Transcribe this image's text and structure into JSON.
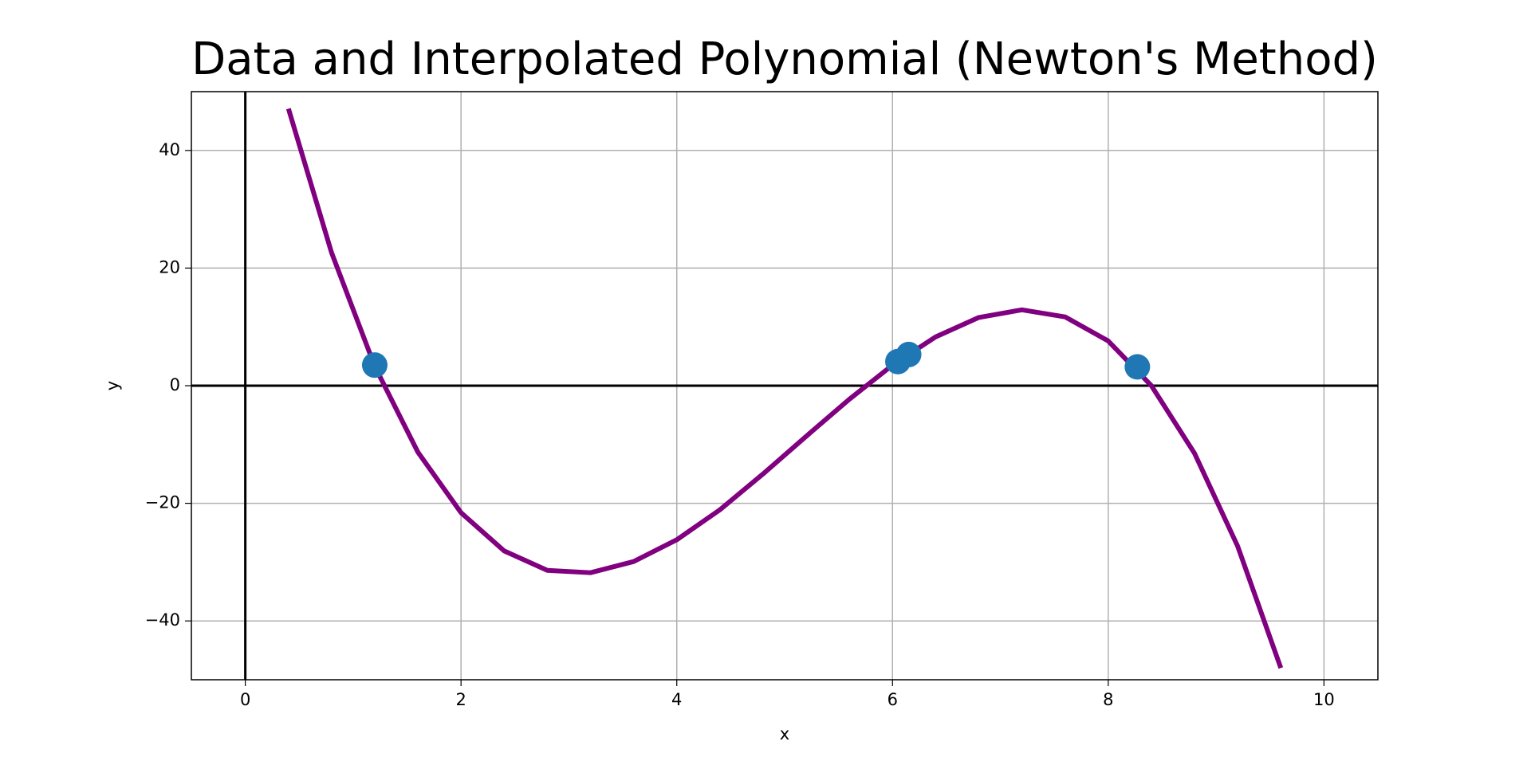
{
  "chart_data": {
    "type": "line",
    "title": "Data and Interpolated Polynomial (Newton's Method)",
    "x_label": "x",
    "y_label": "y",
    "xlim": [
      -0.5,
      10.5
    ],
    "ylim": [
      -50,
      50
    ],
    "xticks": [
      0,
      2,
      4,
      6,
      8,
      10
    ],
    "yticks": [
      {
        "value": -40,
        "label": "−40"
      },
      {
        "value": -20,
        "label": "−20"
      },
      0,
      20,
      40
    ],
    "grid": true,
    "zero_lines": true,
    "series": [
      {
        "type": "line",
        "color": "#800080",
        "x": [
          0.4,
          0.8,
          1.2,
          1.6,
          2.0,
          2.4,
          2.8,
          3.2,
          3.6,
          4.0,
          4.4,
          4.8,
          5.2,
          5.6,
          6.0,
          6.4,
          6.8,
          7.2,
          7.6,
          8.0,
          8.4,
          8.8,
          9.2,
          9.6
        ],
        "values": [
          47.1,
          22.6,
          3.3,
          -11.3,
          -21.6,
          -28.1,
          -31.4,
          -31.8,
          -29.9,
          -26.2,
          -21.1,
          -15.0,
          -8.6,
          -2.3,
          3.5,
          8.3,
          11.6,
          12.9,
          11.7,
          7.6,
          0,
          -11.5,
          -27.3,
          -48.0
        ]
      },
      {
        "type": "scatter",
        "color": "#1f77b4",
        "x": [
          1.2,
          6.05,
          6.15,
          8.27
        ],
        "values": [
          3.5,
          4.1,
          5.3,
          3.2
        ]
      }
    ]
  }
}
